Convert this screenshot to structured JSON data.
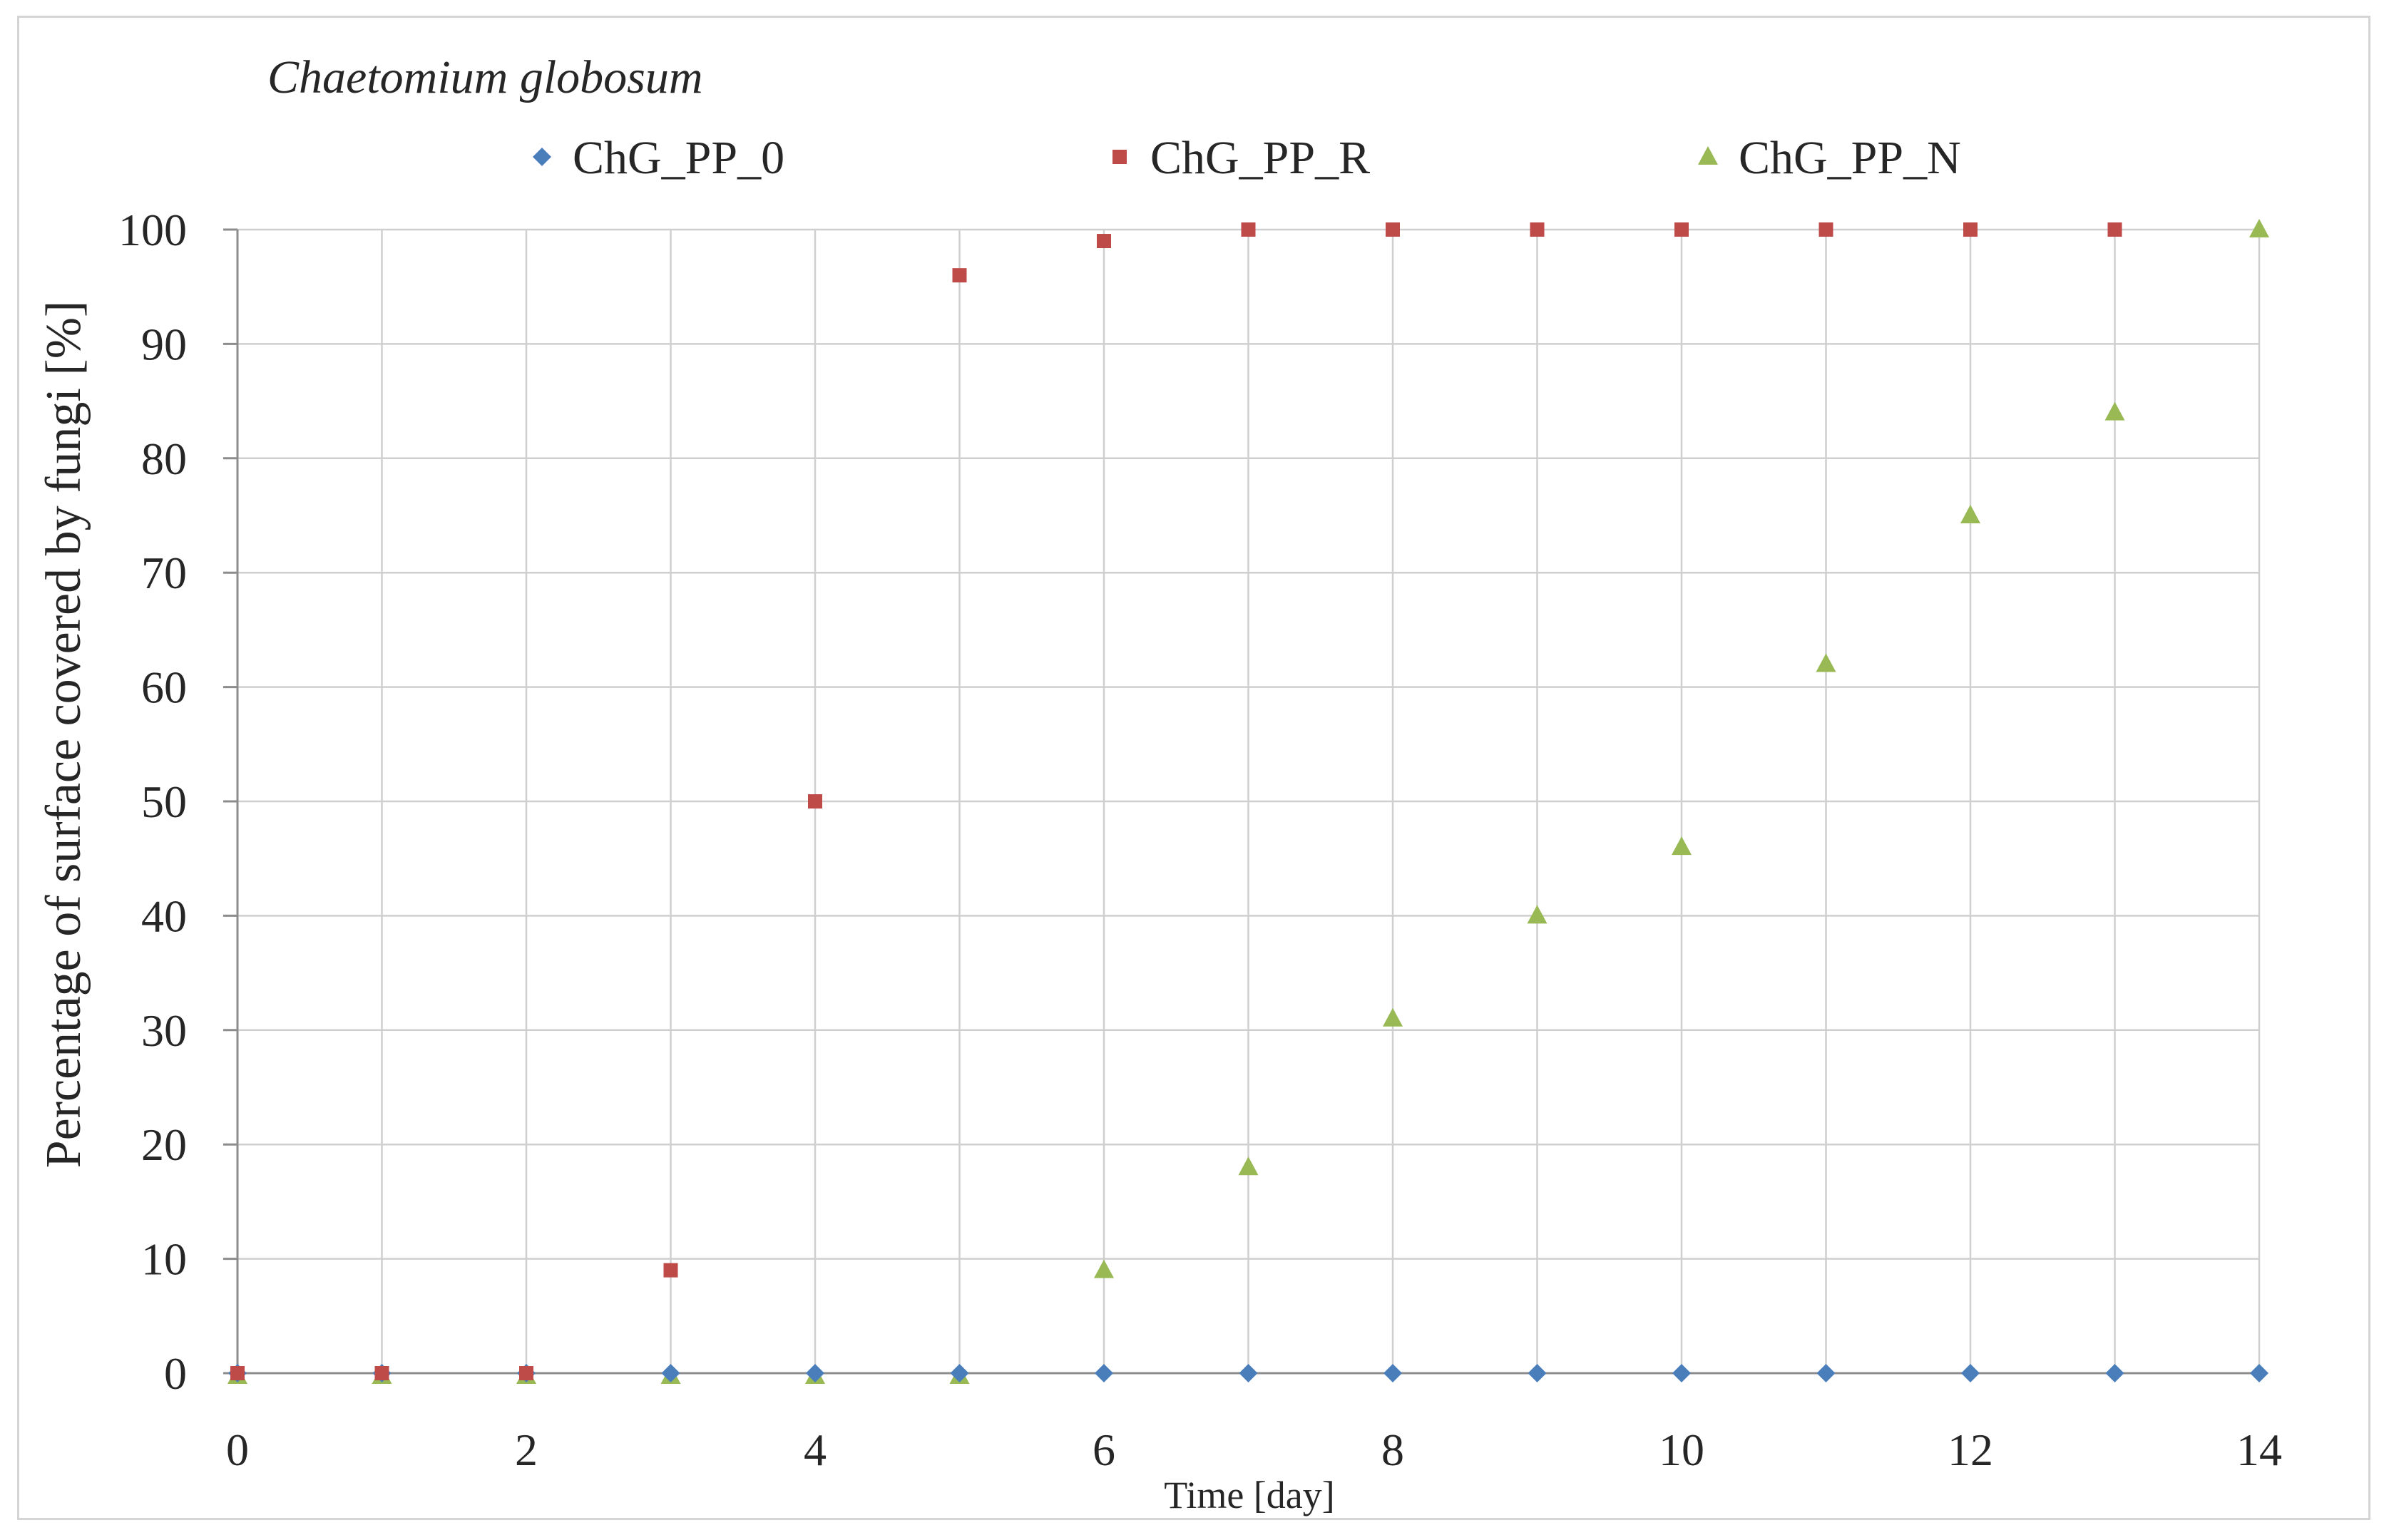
{
  "chart_data": {
    "type": "scatter",
    "title": "Chaetomium globosum",
    "xlabel": "Time [day]",
    "ylabel": "Percentage of surface covered by fungi [%]",
    "xlim": [
      0,
      14
    ],
    "ylim": [
      0,
      100
    ],
    "x_ticks": [
      0,
      2,
      4,
      6,
      8,
      10,
      12,
      14
    ],
    "x_tick_labels": [
      "0",
      "2",
      "4",
      "6",
      "8",
      "10",
      "12",
      "14"
    ],
    "y_ticks": [
      0,
      10,
      20,
      30,
      40,
      50,
      60,
      70,
      80,
      90,
      100
    ],
    "y_tick_labels": [
      "0",
      "10",
      "20",
      "30",
      "40",
      "50",
      "60",
      "70",
      "80",
      "90",
      "100"
    ],
    "grid": true,
    "legend_position": "top",
    "x": [
      0,
      1,
      2,
      3,
      4,
      5,
      6,
      7,
      8,
      9,
      10,
      11,
      12,
      13,
      14
    ],
    "series": [
      {
        "name": "ChG_PP_0",
        "marker": "diamond",
        "color": "#4a7ebb",
        "x": [
          0,
          1,
          2,
          3,
          4,
          5,
          6,
          7,
          8,
          9,
          10,
          11,
          12,
          13,
          14
        ],
        "values": [
          0,
          0,
          0,
          0,
          0,
          0,
          0,
          0,
          0,
          0,
          0,
          0,
          0,
          0,
          0
        ]
      },
      {
        "name": "ChG_PP_R",
        "marker": "square",
        "color": "#be4b48",
        "x": [
          0,
          1,
          2,
          3,
          4,
          5,
          6,
          7,
          8,
          9,
          10,
          11,
          12,
          13
        ],
        "values": [
          0,
          0,
          0,
          9,
          50,
          96,
          99,
          100,
          100,
          100,
          100,
          100,
          100,
          100
        ]
      },
      {
        "name": "ChG_PP_N",
        "marker": "triangle",
        "color": "#98b954",
        "x": [
          0,
          1,
          2,
          3,
          4,
          5,
          6,
          7,
          8,
          9,
          10,
          11,
          12,
          13,
          14
        ],
        "values": [
          0,
          0,
          0,
          0,
          0,
          0,
          9,
          18,
          31,
          40,
          46,
          62,
          75,
          84,
          100
        ]
      }
    ]
  }
}
